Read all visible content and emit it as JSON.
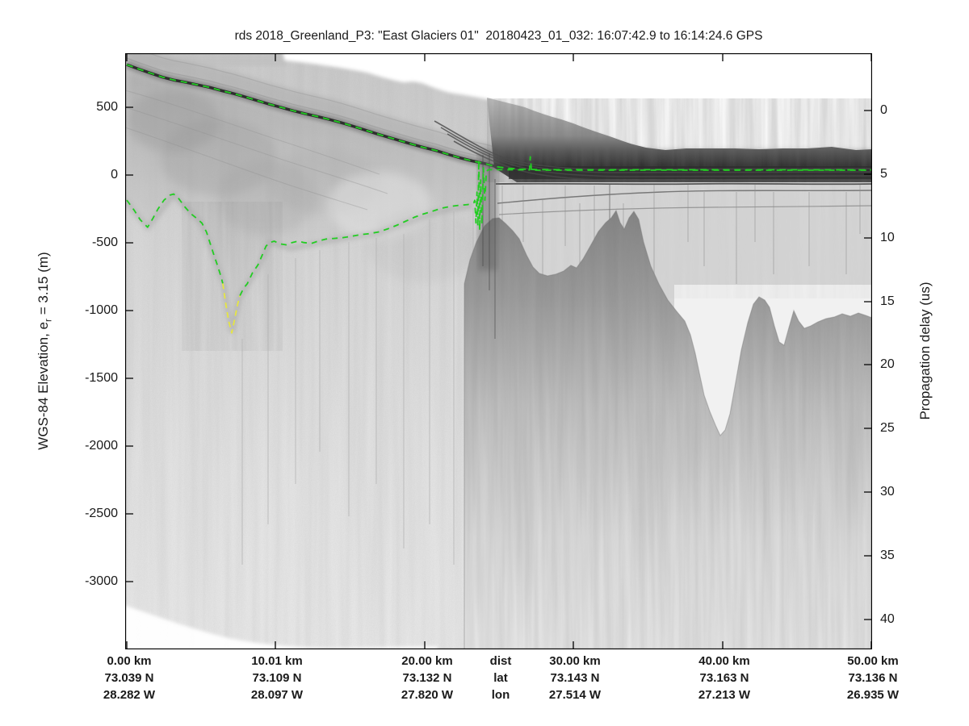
{
  "header": {
    "title": "rds 2018_Greenland_P3: \"East Glaciers 01\"  20180423_01_032: 16:07:42.9 to 16:14:24.6 GPS"
  },
  "axes": {
    "left": {
      "label_prefix": "WGS-84 Elevation, e",
      "label_sub": "r",
      "label_suffix": " = 3.15 (m)",
      "ticks": [
        "500",
        "0",
        "-500",
        "-1000",
        "-1500",
        "-2000",
        "-2500",
        "-3000"
      ]
    },
    "right": {
      "label": "Propagation delay (us)",
      "ticks": [
        "0",
        "5",
        "10",
        "15",
        "20",
        "25",
        "30",
        "35",
        "40"
      ]
    },
    "bottom": {
      "columns": [
        {
          "dist": "0.00 km",
          "lat": "73.039 N",
          "lon": "28.282 W"
        },
        {
          "dist": "10.01 km",
          "lat": "73.109 N",
          "lon": "28.097 W"
        },
        {
          "dist": "20.00 km",
          "lat": "73.132 N",
          "lon": "27.820 W"
        },
        {
          "dist": "dist",
          "lat": "lat",
          "lon": "lon"
        },
        {
          "dist": "30.00 km",
          "lat": "73.143 N",
          "lon": "27.514 W"
        },
        {
          "dist": "40.00 km",
          "lat": "73.163 N",
          "lon": "27.213 W"
        },
        {
          "dist": "50.00 km",
          "lat": "73.136 N",
          "lon": "26.935 W"
        }
      ]
    }
  },
  "colors": {
    "pick_green": "#22cd22",
    "pick_low_confidence_yellow": "#e6e642",
    "axis": "#000000"
  },
  "chart_data": {
    "type": "heatmap",
    "subtype": "radar-echogram",
    "title": "rds 2018_Greenland_P3: \"East Glaciers 01\"  20180423_01_032: 16:07:42.9 to 16:14:24.6 GPS",
    "x_axis": {
      "label": "dist (km)",
      "ticks_km": [
        0.0,
        10.01,
        20.0,
        30.0,
        40.0,
        50.0
      ],
      "lat_ticks_deg_N": [
        73.039,
        73.109,
        73.132,
        73.143,
        73.163,
        73.136
      ],
      "lon_ticks_deg_W": [
        28.282,
        28.097,
        27.82,
        27.514,
        27.213,
        26.935
      ]
    },
    "y_axis_left": {
      "label": "WGS-84 Elevation, e_r = 3.15 (m)",
      "ticks_m": [
        500,
        0,
        -500,
        -1000,
        -1500,
        -2000,
        -2500,
        -3000
      ],
      "range_m": [
        -3530,
        900
      ]
    },
    "y_axis_right": {
      "label": "Propagation delay (us)",
      "ticks_us": [
        0,
        5,
        10,
        15,
        20,
        25,
        30,
        35,
        40
      ],
      "range_us": [
        -4.5,
        42.4
      ]
    },
    "legend_position": "none",
    "grid": false,
    "notes": "Grayscale airborne radar depth-sounder echogram. Grounded glacier from 0-24 km with subglacial trough to about -1165 m near 7 km (yellow = low-confidence bed pick); terminus near 24 km; flat sea/melange surface near +40 m elevation (about 5 us delay) from 24-50 km with rough seafloor echoes below.",
    "series": [
      {
        "name": "surface-pick",
        "color": "#22cd22",
        "dash": "8 6",
        "units": [
          "km",
          "m"
        ],
        "points": [
          [
            0,
            815
          ],
          [
            0.8,
            782
          ],
          [
            1.6,
            752
          ],
          [
            2.4,
            722
          ],
          [
            3.2,
            700
          ],
          [
            4,
            683
          ],
          [
            4.8,
            665
          ],
          [
            5.6,
            646
          ],
          [
            6.4,
            622
          ],
          [
            7.2,
            600
          ],
          [
            8,
            575
          ],
          [
            8.8,
            548
          ],
          [
            9.6,
            522
          ],
          [
            10.4,
            498
          ],
          [
            11.2,
            474
          ],
          [
            12,
            452
          ],
          [
            12.8,
            432
          ],
          [
            13.6,
            410
          ],
          [
            14.4,
            386
          ],
          [
            15.2,
            360
          ],
          [
            16,
            332
          ],
          [
            16.8,
            304
          ],
          [
            17.6,
            278
          ],
          [
            18.4,
            252
          ],
          [
            19.2,
            226
          ],
          [
            20,
            202
          ],
          [
            20.8,
            180
          ],
          [
            21.6,
            152
          ],
          [
            22.4,
            126
          ],
          [
            23.2,
            104
          ],
          [
            24,
            86
          ],
          [
            24.8,
            62
          ],
          [
            25.6,
            50
          ],
          [
            26.4,
            44
          ],
          [
            28,
            40
          ],
          [
            50,
            38
          ]
        ]
      },
      {
        "name": "bed-pick-west",
        "color": "#22cd22",
        "dash": "7 6",
        "units": [
          "km",
          "m"
        ],
        "points": [
          [
            0,
            -185
          ],
          [
            0.5,
            -260
          ],
          [
            0.9,
            -330
          ],
          [
            1.4,
            -385
          ],
          [
            1.75,
            -320
          ],
          [
            2.1,
            -250
          ],
          [
            2.5,
            -185
          ],
          [
            2.9,
            -148
          ],
          [
            3.15,
            -140
          ],
          [
            3.5,
            -175
          ],
          [
            3.9,
            -235
          ],
          [
            4.3,
            -285
          ],
          [
            4.7,
            -320
          ],
          [
            5.05,
            -355
          ],
          [
            5.35,
            -420
          ],
          [
            5.6,
            -505
          ],
          [
            5.85,
            -590
          ],
          [
            6.1,
            -670
          ],
          [
            6.3,
            -740
          ],
          [
            6.45,
            -800
          ]
        ]
      },
      {
        "name": "bed-pick-low-confidence",
        "color": "#e6e642",
        "dash": "7 5",
        "units": [
          "km",
          "m"
        ],
        "points": [
          [
            6.45,
            -800
          ],
          [
            6.65,
            -950
          ],
          [
            6.85,
            -1080
          ],
          [
            7.05,
            -1165
          ],
          [
            7.25,
            -1060
          ],
          [
            7.45,
            -950
          ],
          [
            7.6,
            -890
          ]
        ]
      },
      {
        "name": "bed-pick-east",
        "color": "#22cd22",
        "dash": "7 6",
        "units": [
          "km",
          "m"
        ],
        "points": [
          [
            7.6,
            -890
          ],
          [
            7.85,
            -835
          ],
          [
            8.1,
            -800
          ],
          [
            8.45,
            -720
          ],
          [
            8.8,
            -665
          ],
          [
            9.1,
            -590
          ],
          [
            9.35,
            -525
          ],
          [
            9.6,
            -498
          ],
          [
            9.9,
            -488
          ],
          [
            10.3,
            -508
          ],
          [
            10.7,
            -515
          ],
          [
            11.1,
            -498
          ],
          [
            11.5,
            -488
          ],
          [
            11.9,
            -498
          ],
          [
            12.4,
            -505
          ],
          [
            12.9,
            -485
          ],
          [
            13.4,
            -472
          ],
          [
            13.9,
            -468
          ],
          [
            14.5,
            -462
          ],
          [
            15.1,
            -452
          ],
          [
            15.7,
            -440
          ],
          [
            16.3,
            -432
          ],
          [
            16.9,
            -420
          ],
          [
            17.5,
            -398
          ],
          [
            18.1,
            -372
          ],
          [
            18.7,
            -342
          ],
          [
            19.3,
            -312
          ],
          [
            19.9,
            -288
          ],
          [
            20.5,
            -268
          ],
          [
            21.1,
            -246
          ],
          [
            21.7,
            -232
          ],
          [
            22.3,
            -224
          ],
          [
            22.9,
            -218
          ],
          [
            23.3,
            -205
          ],
          [
            23.37,
            -186
          ],
          [
            23.45,
            -353
          ],
          [
            23.52,
            -126
          ],
          [
            23.58,
            -377
          ],
          [
            23.64,
            110
          ],
          [
            23.7,
            -407
          ],
          [
            23.77,
            -36
          ],
          [
            23.85,
            -365
          ],
          [
            23.95,
            54
          ],
          [
            24.05,
            -186
          ],
          [
            24.15,
            28
          ],
          [
            24.3,
            40
          ],
          [
            27.05,
            38
          ],
          [
            27.1,
            135
          ],
          [
            27.18,
            36
          ],
          [
            50,
            36
          ]
        ]
      }
    ]
  }
}
